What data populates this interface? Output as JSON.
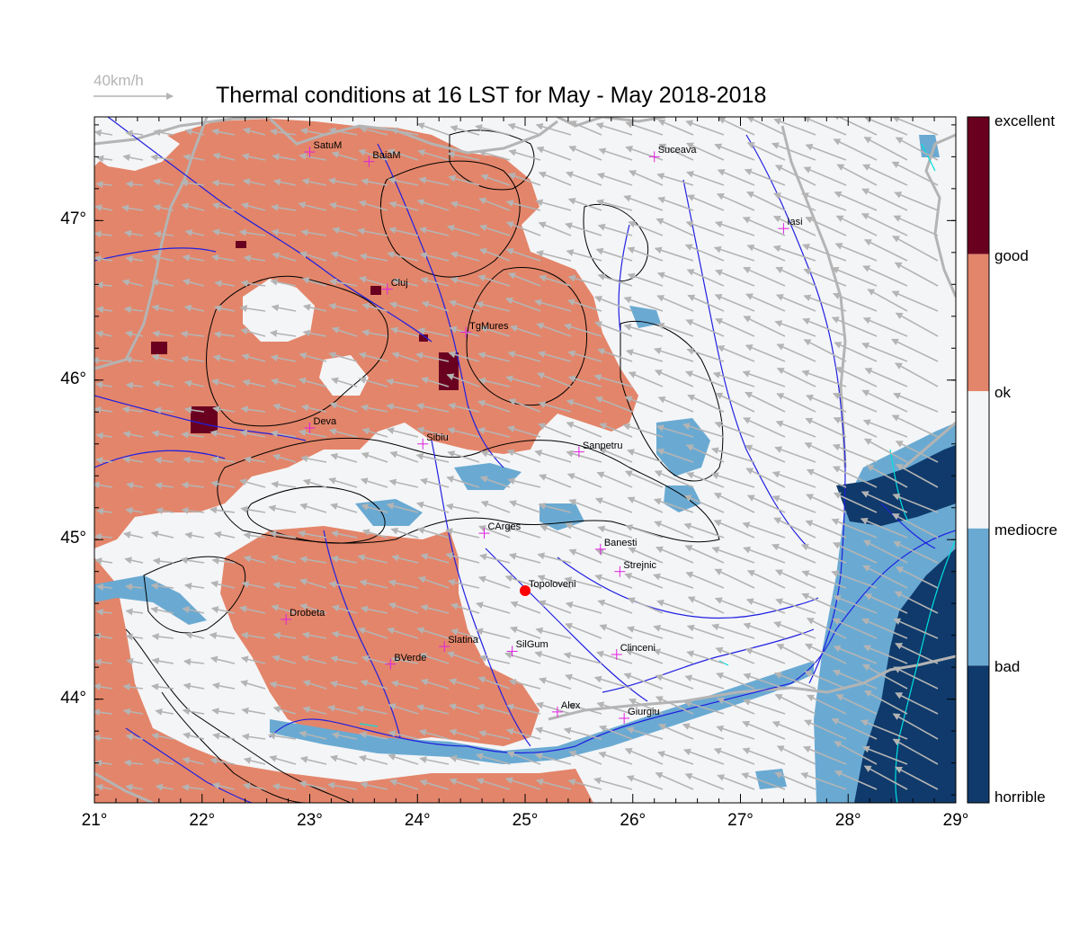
{
  "title": "Thermal conditions at 16 LST for May - May  2018-2018",
  "wind_key": {
    "label": "40km/h",
    "color": "#b4b4b4"
  },
  "map": {
    "lon_range": [
      21,
      29
    ],
    "lat_range": [
      43.35,
      47.65
    ],
    "x_tick_labels": [
      "21°",
      "22°",
      "23°",
      "24°",
      "25°",
      "26°",
      "27°",
      "28°",
      "29°"
    ],
    "y_tick_labels": [
      "44°",
      "45°",
      "46°",
      "47°"
    ],
    "x_ticks": [
      21,
      22,
      23,
      24,
      25,
      26,
      27,
      28,
      29
    ],
    "y_ticks": [
      44,
      45,
      46,
      47
    ],
    "colors": {
      "ok_region": "#e3856a",
      "mediocre_region": "#f4f5f7",
      "bad_region": "#6aaad2",
      "horrible_region": "#0f3a6b",
      "good_region": "#6a0020",
      "rivers": "#2020e0",
      "borders": "#b4b4b4",
      "contours": "#000000",
      "wind_arrows": "#b4b4b4",
      "city_marker": "#e020e0",
      "highlight": "#ff0000"
    }
  },
  "colorbar": {
    "labels": [
      "excellent",
      "good",
      "ok",
      "mediocre",
      "bad",
      "horrible"
    ],
    "bands": [
      {
        "name": "excellent-good",
        "color": "#6a0020"
      },
      {
        "name": "good-ok",
        "color": "#e3856a"
      },
      {
        "name": "ok-mediocre",
        "color": "#f4f5f7"
      },
      {
        "name": "mediocre-bad",
        "color": "#6aaad2"
      },
      {
        "name": "bad-horrible",
        "color": "#0f3a6b"
      }
    ]
  },
  "cities": [
    {
      "name": "SatuM",
      "lon": 23.0,
      "lat": 47.43
    },
    {
      "name": "BaiaM",
      "lon": 23.55,
      "lat": 47.37
    },
    {
      "name": "Suceava",
      "lon": 26.2,
      "lat": 47.4
    },
    {
      "name": "Iasi",
      "lon": 27.4,
      "lat": 46.95
    },
    {
      "name": "Cluj",
      "lon": 23.72,
      "lat": 46.57
    },
    {
      "name": "TgMures",
      "lon": 24.45,
      "lat": 46.3
    },
    {
      "name": "Deva",
      "lon": 23.0,
      "lat": 45.7
    },
    {
      "name": "Sibiu",
      "lon": 24.05,
      "lat": 45.6
    },
    {
      "name": "Sanpetru",
      "lon": 25.5,
      "lat": 45.55
    },
    {
      "name": "CArges",
      "lon": 24.62,
      "lat": 45.04
    },
    {
      "name": "Banesti",
      "lon": 25.7,
      "lat": 44.94
    },
    {
      "name": "Strejnic",
      "lon": 25.88,
      "lat": 44.8
    },
    {
      "name": "Topoloveni",
      "lon": 25.0,
      "lat": 44.68
    },
    {
      "name": "Drobeta",
      "lon": 22.78,
      "lat": 44.5
    },
    {
      "name": "Slatina",
      "lon": 24.25,
      "lat": 44.33
    },
    {
      "name": "SilGum",
      "lon": 24.88,
      "lat": 44.3
    },
    {
      "name": "Clinceni",
      "lon": 25.85,
      "lat": 44.28
    },
    {
      "name": "BVerde",
      "lon": 23.75,
      "lat": 44.22
    },
    {
      "name": "Alex",
      "lon": 25.3,
      "lat": 43.92
    },
    {
      "name": "Giurgiu",
      "lon": 25.92,
      "lat": 43.88
    }
  ],
  "highlight_city": "Topoloveni"
}
